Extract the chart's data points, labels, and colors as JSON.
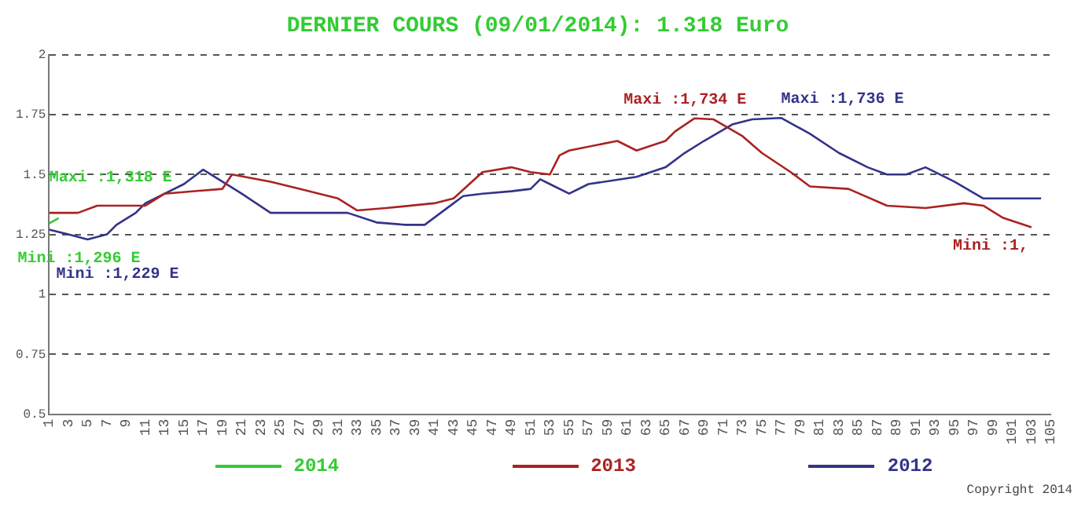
{
  "chart_data": {
    "type": "line",
    "title": "DERNIER COURS (09/01/2014): 1.318 Euro",
    "xlim": [
      1,
      105
    ],
    "xticks": [
      1,
      3,
      5,
      7,
      9,
      11,
      13,
      15,
      17,
      19,
      21,
      23,
      25,
      27,
      29,
      31,
      33,
      35,
      37,
      39,
      41,
      43,
      45,
      47,
      49,
      51,
      53,
      55,
      57,
      59,
      61,
      63,
      65,
      67,
      69,
      71,
      73,
      75,
      77,
      79,
      81,
      83,
      85,
      87,
      89,
      91,
      93,
      95,
      97,
      99,
      101,
      103,
      105
    ],
    "ylim": [
      0.5,
      2
    ],
    "yticks": [
      0.5,
      0.75,
      1,
      1.25,
      1.5,
      1.75,
      2
    ],
    "grid": "y",
    "legend": "bottom",
    "line_style": "solid",
    "marker": "none",
    "series": [
      {
        "name": "2014",
        "color": "#33cc33",
        "x": [
          1,
          2
        ],
        "values": [
          1.296,
          1.318
        ]
      },
      {
        "name": "2013",
        "color": "#aa2222",
        "x": [
          1,
          4,
          6,
          11,
          13,
          19,
          20,
          24,
          27,
          31,
          33,
          36,
          41,
          43,
          46,
          49,
          51,
          53,
          54,
          55,
          60,
          62,
          65,
          66,
          68,
          70,
          73,
          75,
          78,
          80,
          84,
          88,
          92,
          96,
          98,
          100,
          103
        ],
        "values": [
          1.34,
          1.34,
          1.37,
          1.37,
          1.42,
          1.44,
          1.5,
          1.47,
          1.44,
          1.4,
          1.35,
          1.36,
          1.38,
          1.4,
          1.51,
          1.53,
          1.51,
          1.5,
          1.58,
          1.6,
          1.64,
          1.6,
          1.64,
          1.68,
          1.734,
          1.73,
          1.66,
          1.59,
          1.51,
          1.45,
          1.44,
          1.37,
          1.36,
          1.38,
          1.37,
          1.32,
          1.28
        ]
      },
      {
        "name": "2012",
        "color": "#333388",
        "x": [
          1,
          3,
          5,
          7,
          8,
          10,
          11,
          13,
          15,
          17,
          19,
          21,
          24,
          28,
          32,
          35,
          38,
          40,
          43,
          44,
          46,
          49,
          51,
          52,
          53,
          55,
          57,
          62,
          65,
          67,
          69,
          72,
          74,
          77,
          80,
          83,
          86,
          88,
          90,
          92,
          95,
          98,
          104
        ],
        "values": [
          1.27,
          1.25,
          1.229,
          1.25,
          1.29,
          1.34,
          1.38,
          1.42,
          1.46,
          1.52,
          1.47,
          1.42,
          1.34,
          1.34,
          1.34,
          1.3,
          1.29,
          1.29,
          1.38,
          1.41,
          1.42,
          1.43,
          1.44,
          1.48,
          1.46,
          1.42,
          1.46,
          1.49,
          1.53,
          1.59,
          1.64,
          1.71,
          1.73,
          1.736,
          1.67,
          1.59,
          1.53,
          1.5,
          1.5,
          1.53,
          1.47,
          1.4,
          1.4
        ]
      }
    ],
    "annotations": [
      {
        "text": "Maxi :1,318 E",
        "x": 2,
        "y": 1.318
      },
      {
        "text": "Mini :1,296 E",
        "x": 1,
        "y": 1.296
      },
      {
        "text": "Mini :1,229 E",
        "x": 5,
        "y": 1.229
      },
      {
        "text": "Maxi :1,734 E",
        "x": 68,
        "y": 1.734
      },
      {
        "text": "Maxi :1,736 E",
        "x": 77,
        "y": 1.736
      },
      {
        "text": "Mini :1,",
        "x": 103,
        "y": 1.28
      },
      "Copyright 2014"
    ]
  }
}
